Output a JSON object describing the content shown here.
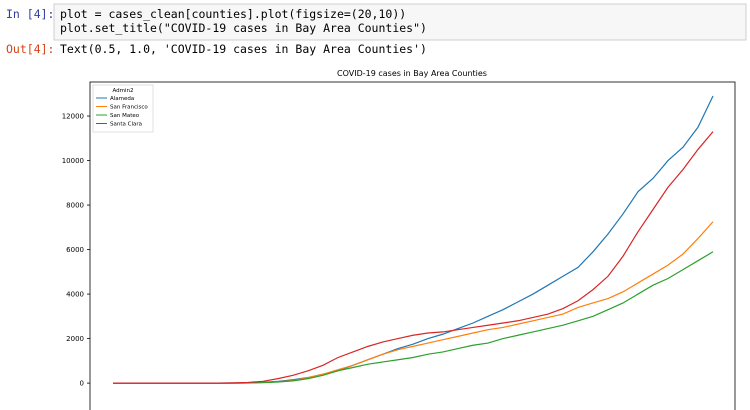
{
  "notebook": {
    "input_prompt": "In [4]:",
    "code_lines": [
      "plot = cases_clean[counties].plot(figsize=(20,10))",
      "plot.set_title(\"COVID-19 cases in Bay Area Counties\")"
    ],
    "output_prompt": "Out[4]:",
    "output_text": "Text(0.5, 1.0, 'COVID-19 cases in Bay Area Counties')"
  },
  "chart_data": {
    "type": "line",
    "title": "COVID-19 cases in Bay Area Counties",
    "legend_title": "Admin2",
    "legend": "upper left",
    "ylim": [
      -670,
      13530
    ],
    "yticks": [
      0,
      2000,
      4000,
      6000,
      8000,
      10000,
      12000
    ],
    "series": [
      {
        "name": "Alameda",
        "color": "#1f77b4",
        "values": [
          0,
          0,
          0,
          0,
          0,
          0,
          0,
          0,
          5,
          10,
          40,
          80,
          150,
          250,
          400,
          550,
          800,
          1050,
          1300,
          1550,
          1750,
          2000,
          2200,
          2450,
          2700,
          3000,
          3300,
          3650,
          4000,
          4400,
          4800,
          5200,
          5900,
          6700,
          7600,
          8600,
          9200,
          10000,
          10600,
          11500,
          12900
        ]
      },
      {
        "name": "San Francisco",
        "color": "#ff7f0e",
        "values": [
          0,
          0,
          0,
          0,
          0,
          0,
          0,
          0,
          0,
          10,
          30,
          60,
          120,
          250,
          400,
          600,
          800,
          1050,
          1300,
          1500,
          1650,
          1800,
          1950,
          2100,
          2250,
          2400,
          2500,
          2650,
          2800,
          2950,
          3100,
          3400,
          3600,
          3800,
          4100,
          4500,
          4900,
          5300,
          5800,
          6500,
          7250
        ]
      },
      {
        "name": "San Mateo",
        "color": "#2ca02c",
        "values": [
          0,
          0,
          0,
          0,
          0,
          0,
          0,
          0,
          0,
          5,
          20,
          50,
          100,
          200,
          350,
          550,
          700,
          850,
          950,
          1050,
          1150,
          1300,
          1400,
          1550,
          1700,
          1800,
          2000,
          2150,
          2300,
          2450,
          2600,
          2800,
          3000,
          3300,
          3600,
          4000,
          4400,
          4700,
          5100,
          5500,
          5900
        ]
      },
      {
        "name": "Santa Clara",
        "color": "#d62728",
        "values": [
          0,
          0,
          0,
          0,
          0,
          0,
          0,
          0,
          10,
          30,
          80,
          200,
          350,
          550,
          800,
          1150,
          1400,
          1650,
          1850,
          2000,
          2150,
          2250,
          2300,
          2400,
          2500,
          2600,
          2700,
          2800,
          2950,
          3100,
          3350,
          3700,
          4200,
          4800,
          5700,
          6800,
          7800,
          8800,
          9600,
          10500,
          11300
        ]
      }
    ]
  }
}
